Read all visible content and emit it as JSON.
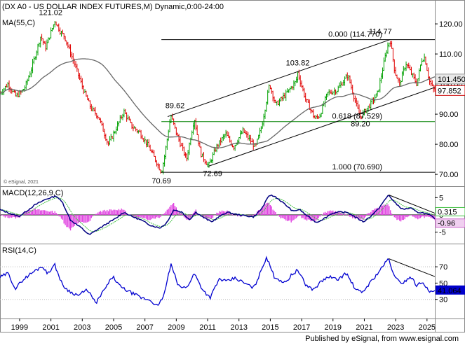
{
  "chart_data": {
    "type": "candlestick",
    "title": "(DX A0 - US DOLLAR INDEX FUTURES,M) Dynamic,0:00-24:00",
    "watermark": "© eSignal, 2021",
    "footer": "Published by eSignal, from www.esignal.com",
    "x_ticks": [
      "1999",
      "2001",
      "2003",
      "2005",
      "2007",
      "2009",
      "2011",
      "2013",
      "2015",
      "2017",
      "2019",
      "2021",
      "2023",
      "2025"
    ],
    "x_range": [
      1998.0,
      2025.75
    ],
    "panels": {
      "price": {
        "ylim": [
          67,
          127
        ],
        "yticks": [
          "70.00",
          "80.00",
          "90.00",
          "100.00",
          "110.00",
          "120.00"
        ],
        "ma_label": "MA(55,C)",
        "last_price_label": "97.852",
        "ma_value_label": "101.450",
        "bull_color": "#00a000",
        "bear_color": "#e00000",
        "ma_color": "#666666",
        "key_points": [
          {
            "t": 1998.0,
            "v": 97
          },
          {
            "t": 1998.5,
            "v": 100
          },
          {
            "t": 1999.0,
            "v": 96
          },
          {
            "t": 1999.3,
            "v": 97
          },
          {
            "t": 1999.6,
            "v": 99
          },
          {
            "t": 2000.0,
            "v": 105
          },
          {
            "t": 2000.6,
            "v": 116
          },
          {
            "t": 2000.9,
            "v": 112
          },
          {
            "t": 2001.5,
            "v": 121.02
          },
          {
            "t": 2001.9,
            "v": 117
          },
          {
            "t": 2002.1,
            "v": 116
          },
          {
            "t": 2002.8,
            "v": 106
          },
          {
            "t": 2003.4,
            "v": 97
          },
          {
            "t": 2003.8,
            "v": 92
          },
          {
            "t": 2004.3,
            "v": 89
          },
          {
            "t": 2004.9,
            "v": 80
          },
          {
            "t": 2005.3,
            "v": 84
          },
          {
            "t": 2005.9,
            "v": 91
          },
          {
            "t": 2006.4,
            "v": 86
          },
          {
            "t": 2006.9,
            "v": 84
          },
          {
            "t": 2007.4,
            "v": 80
          },
          {
            "t": 2007.9,
            "v": 75
          },
          {
            "t": 2008.3,
            "v": 70.69
          },
          {
            "t": 2008.5,
            "v": 76
          },
          {
            "t": 2008.9,
            "v": 89.62
          },
          {
            "t": 2009.3,
            "v": 83
          },
          {
            "t": 2009.9,
            "v": 75
          },
          {
            "t": 2010.4,
            "v": 88.7
          },
          {
            "t": 2010.8,
            "v": 77
          },
          {
            "t": 2011.3,
            "v": 72.69
          },
          {
            "t": 2011.8,
            "v": 79
          },
          {
            "t": 2012.4,
            "v": 83.5
          },
          {
            "t": 2012.9,
            "v": 79
          },
          {
            "t": 2013.5,
            "v": 84.5
          },
          {
            "t": 2014.3,
            "v": 79
          },
          {
            "t": 2014.7,
            "v": 86
          },
          {
            "t": 2015.2,
            "v": 100
          },
          {
            "t": 2015.6,
            "v": 93
          },
          {
            "t": 2016.3,
            "v": 97
          },
          {
            "t": 2016.9,
            "v": 101
          },
          {
            "t": 2017.0,
            "v": 103.82
          },
          {
            "t": 2017.5,
            "v": 95
          },
          {
            "t": 2018.1,
            "v": 88.5
          },
          {
            "t": 2018.4,
            "v": 89.5
          },
          {
            "t": 2018.9,
            "v": 97
          },
          {
            "t": 2019.5,
            "v": 98
          },
          {
            "t": 2020.2,
            "v": 102.99
          },
          {
            "t": 2020.8,
            "v": 92
          },
          {
            "t": 2021.0,
            "v": 89.2
          },
          {
            "t": 2021.6,
            "v": 93
          },
          {
            "t": 2022.1,
            "v": 97
          },
          {
            "t": 2022.7,
            "v": 112
          },
          {
            "t": 2022.9,
            "v": 114.77
          },
          {
            "t": 2023.2,
            "v": 104
          },
          {
            "t": 2023.5,
            "v": 100
          },
          {
            "t": 2023.9,
            "v": 107
          },
          {
            "t": 2024.3,
            "v": 103
          },
          {
            "t": 2024.6,
            "v": 100
          },
          {
            "t": 2024.9,
            "v": 108
          },
          {
            "t": 2025.1,
            "v": 109
          },
          {
            "t": 2025.4,
            "v": 101
          },
          {
            "t": 2025.7,
            "v": 97.852
          }
        ],
        "fib_levels": [
          {
            "label": "0.000 (114.770)",
            "value": 114.77,
            "t0": 2008.3
          },
          {
            "label": "0.618 (87.529)",
            "value": 87.529,
            "t0": 2008.3
          },
          {
            "label": "1.000 (70.690)",
            "value": 70.69,
            "t0": 2008.3
          }
        ],
        "channel": {
          "upper": [
            {
              "t": 2008.7,
              "v": 89.2
            },
            {
              "t": 2022.9,
              "v": 114.77
            }
          ],
          "lower": [
            {
              "t": 2011.3,
              "v": 72.69
            },
            {
              "t": 2025.75,
              "v": 98.9
            }
          ]
        },
        "annotations": [
          {
            "text": "121.02",
            "t": 2001.5,
            "v": 121.02
          },
          {
            "text": "70.69",
            "t": 2008.3,
            "v": 70.69
          },
          {
            "text": "89.62",
            "t": 2008.9,
            "v": 89.62
          },
          {
            "text": "72.69",
            "t": 2011.3,
            "v": 72.69
          },
          {
            "text": "103.82",
            "t": 2017.0,
            "v": 103.82
          },
          {
            "text": "89.20",
            "t": 2021.0,
            "v": 89.2
          },
          {
            "text": "114.77",
            "t": 2022.9,
            "v": 114.77
          }
        ]
      },
      "macd": {
        "label": "MACD(12,26,9,C)",
        "ylim": [
          -7.5,
          7.5
        ],
        "yticks": [
          "-5",
          "0",
          "5"
        ],
        "value_labels": [
          "0.315",
          "-0.96"
        ],
        "macd_color": "#000080",
        "signal_color": "#40c040",
        "hist_color": "#e040e0",
        "key_points": [
          {
            "t": 1998.0,
            "v": 1.5
          },
          {
            "t": 1998.6,
            "v": 0.5
          },
          {
            "t": 1999.2,
            "v": -0.5
          },
          {
            "t": 1999.6,
            "v": 0.8
          },
          {
            "t": 2000.2,
            "v": 2.8
          },
          {
            "t": 2000.9,
            "v": 4.5
          },
          {
            "t": 2001.6,
            "v": 5.5
          },
          {
            "t": 2002.0,
            "v": 3.5
          },
          {
            "t": 2002.5,
            "v": -1.5
          },
          {
            "t": 2003.2,
            "v": -3.8
          },
          {
            "t": 2003.7,
            "v": -5.8
          },
          {
            "t": 2004.3,
            "v": -4.0
          },
          {
            "t": 2004.8,
            "v": -2.6
          },
          {
            "t": 2005.4,
            "v": -1.0
          },
          {
            "t": 2005.9,
            "v": 0.8
          },
          {
            "t": 2006.4,
            "v": -0.4
          },
          {
            "t": 2007.0,
            "v": -1.5
          },
          {
            "t": 2007.6,
            "v": -3.0
          },
          {
            "t": 2008.2,
            "v": -3.8
          },
          {
            "t": 2008.6,
            "v": -2.5
          },
          {
            "t": 2009.1,
            "v": 1.5
          },
          {
            "t": 2009.6,
            "v": 0.8
          },
          {
            "t": 2010.1,
            "v": -1.4
          },
          {
            "t": 2010.5,
            "v": 0.8
          },
          {
            "t": 2011.0,
            "v": -0.8
          },
          {
            "t": 2011.5,
            "v": -2.0
          },
          {
            "t": 2012.0,
            "v": -0.5
          },
          {
            "t": 2012.5,
            "v": 0.8
          },
          {
            "t": 2013.0,
            "v": 0.2
          },
          {
            "t": 2013.6,
            "v": -0.2
          },
          {
            "t": 2014.2,
            "v": -0.6
          },
          {
            "t": 2014.7,
            "v": 1.8
          },
          {
            "t": 2015.2,
            "v": 5.8
          },
          {
            "t": 2015.6,
            "v": 5.2
          },
          {
            "t": 2016.2,
            "v": 3.0
          },
          {
            "t": 2016.7,
            "v": 1.0
          },
          {
            "t": 2017.1,
            "v": 1.6
          },
          {
            "t": 2017.6,
            "v": -0.3
          },
          {
            "t": 2018.2,
            "v": -2.2
          },
          {
            "t": 2018.7,
            "v": -1.0
          },
          {
            "t": 2019.2,
            "v": 0.5
          },
          {
            "t": 2019.7,
            "v": 0.8
          },
          {
            "t": 2020.2,
            "v": 0.7
          },
          {
            "t": 2020.8,
            "v": -1.0
          },
          {
            "t": 2021.2,
            "v": -2.0
          },
          {
            "t": 2021.6,
            "v": -0.6
          },
          {
            "t": 2022.1,
            "v": 1.5
          },
          {
            "t": 2022.8,
            "v": 5.8
          },
          {
            "t": 2023.2,
            "v": 3.5
          },
          {
            "t": 2023.7,
            "v": 1.6
          },
          {
            "t": 2024.2,
            "v": 2.0
          },
          {
            "t": 2024.6,
            "v": 0.8
          },
          {
            "t": 2025.0,
            "v": 0.6
          },
          {
            "t": 2025.4,
            "v": 0.0
          },
          {
            "t": 2025.7,
            "v": -0.96
          }
        ],
        "trendline": [
          {
            "t": 2022.8,
            "v": 5.8
          },
          {
            "t": 2025.75,
            "v": 0.5
          }
        ]
      },
      "rsi": {
        "label": "RSI(14,C)",
        "ylim": [
          10,
          95
        ],
        "yticks": [
          "30",
          "50",
          "70"
        ],
        "value_label": "41.064",
        "line_color": "#0000d0",
        "key_points": [
          {
            "t": 1998.0,
            "v": 57
          },
          {
            "t": 1998.5,
            "v": 62
          },
          {
            "t": 1999.0,
            "v": 43
          },
          {
            "t": 1999.4,
            "v": 53
          },
          {
            "t": 2000.0,
            "v": 62
          },
          {
            "t": 2000.7,
            "v": 71
          },
          {
            "t": 2001.0,
            "v": 62
          },
          {
            "t": 2001.5,
            "v": 72
          },
          {
            "t": 2002.0,
            "v": 47
          },
          {
            "t": 2002.5,
            "v": 39
          },
          {
            "t": 2003.0,
            "v": 35
          },
          {
            "t": 2003.6,
            "v": 42
          },
          {
            "t": 2004.1,
            "v": 25
          },
          {
            "t": 2004.6,
            "v": 40
          },
          {
            "t": 2005.2,
            "v": 58
          },
          {
            "t": 2005.7,
            "v": 45
          },
          {
            "t": 2006.4,
            "v": 38
          },
          {
            "t": 2007.0,
            "v": 32
          },
          {
            "t": 2007.6,
            "v": 29
          },
          {
            "t": 2008.1,
            "v": 21
          },
          {
            "t": 2008.5,
            "v": 38
          },
          {
            "t": 2008.9,
            "v": 73
          },
          {
            "t": 2009.4,
            "v": 46
          },
          {
            "t": 2009.9,
            "v": 44
          },
          {
            "t": 2010.4,
            "v": 62
          },
          {
            "t": 2010.9,
            "v": 43
          },
          {
            "t": 2011.4,
            "v": 32
          },
          {
            "t": 2012.0,
            "v": 55
          },
          {
            "t": 2012.5,
            "v": 52
          },
          {
            "t": 2013.0,
            "v": 56
          },
          {
            "t": 2013.6,
            "v": 50
          },
          {
            "t": 2014.2,
            "v": 44
          },
          {
            "t": 2014.6,
            "v": 62
          },
          {
            "t": 2015.0,
            "v": 82
          },
          {
            "t": 2015.5,
            "v": 58
          },
          {
            "t": 2016.2,
            "v": 50
          },
          {
            "t": 2016.6,
            "v": 60
          },
          {
            "t": 2017.0,
            "v": 66
          },
          {
            "t": 2017.5,
            "v": 48
          },
          {
            "t": 2018.0,
            "v": 42
          },
          {
            "t": 2018.5,
            "v": 52
          },
          {
            "t": 2019.0,
            "v": 58
          },
          {
            "t": 2019.5,
            "v": 54
          },
          {
            "t": 2020.1,
            "v": 62
          },
          {
            "t": 2020.7,
            "v": 42
          },
          {
            "t": 2021.1,
            "v": 38
          },
          {
            "t": 2021.6,
            "v": 50
          },
          {
            "t": 2022.1,
            "v": 62
          },
          {
            "t": 2022.8,
            "v": 80
          },
          {
            "t": 2023.2,
            "v": 56
          },
          {
            "t": 2023.7,
            "v": 50
          },
          {
            "t": 2024.2,
            "v": 58
          },
          {
            "t": 2024.6,
            "v": 47
          },
          {
            "t": 2025.0,
            "v": 52
          },
          {
            "t": 2025.4,
            "v": 38
          },
          {
            "t": 2025.7,
            "v": 41.064
          }
        ],
        "trendline": [
          {
            "t": 2022.8,
            "v": 80
          },
          {
            "t": 2025.75,
            "v": 58
          }
        ]
      }
    }
  }
}
